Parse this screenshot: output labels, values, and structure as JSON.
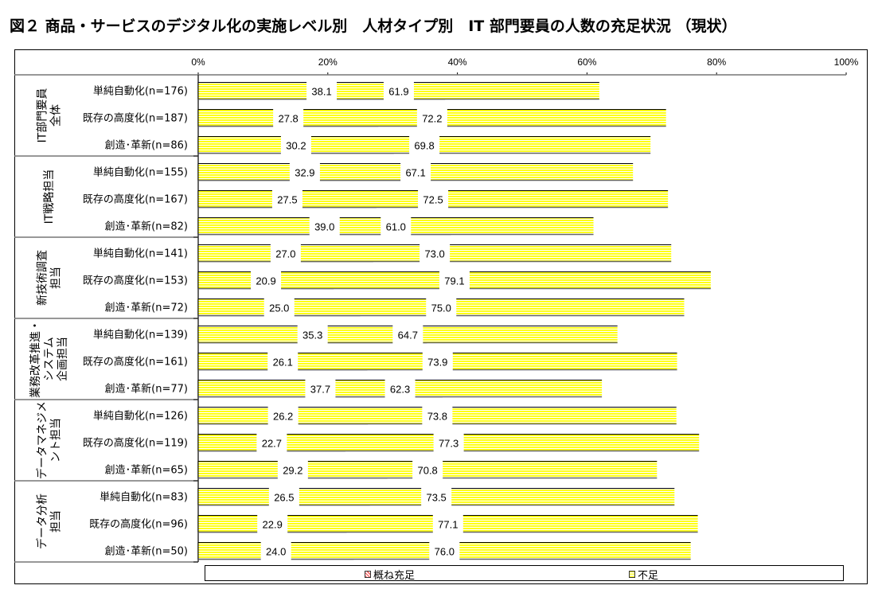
{
  "title": "図２ 商品・サービスのデジタル化の実施レベル別　人材タイプ別　IT 部門要員の人数の充足状況 （現状）",
  "colors": {
    "sufficient": "#ff4d4d",
    "insufficient": "#ffff00",
    "hatch_bg": "#ffffff"
  },
  "chart_data": {
    "type": "bar",
    "orientation": "horizontal",
    "stacked": true,
    "percent_stacked": true,
    "title": "図２ 商品・サービスのデジタル化の実施レベル別　人材タイプ別　IT 部門要員の人数の充足状況 （現状）",
    "xlabel": "",
    "ylabel": "",
    "xlim": [
      0,
      100
    ],
    "x_ticks": [
      "0%",
      "20%",
      "40%",
      "60%",
      "80%",
      "100%"
    ],
    "legend_position": "bottom",
    "legend": [
      "概ね充足",
      "不足"
    ],
    "groups": [
      {
        "label_lines": [
          "IT部門要員",
          "全体"
        ],
        "rows": [
          {
            "category": "単純自動化(n=176)",
            "values": [
              38.1,
              61.9
            ]
          },
          {
            "category": "既存の高度化(n=187)",
            "values": [
              27.8,
              72.2
            ]
          },
          {
            "category": "創造･革新(n=86)",
            "values": [
              30.2,
              69.8
            ]
          }
        ]
      },
      {
        "label_lines": [
          "IT戦略担当"
        ],
        "rows": [
          {
            "category": "単純自動化(n=155)",
            "values": [
              32.9,
              67.1
            ]
          },
          {
            "category": "既存の高度化(n=167)",
            "values": [
              27.5,
              72.5
            ]
          },
          {
            "category": "創造･革新(n=82)",
            "values": [
              39.0,
              61.0
            ]
          }
        ]
      },
      {
        "label_lines": [
          "新技術調査",
          "担当"
        ],
        "rows": [
          {
            "category": "単純自動化(n=141)",
            "values": [
              27.0,
              73.0
            ]
          },
          {
            "category": "既存の高度化(n=153)",
            "values": [
              20.9,
              79.1
            ]
          },
          {
            "category": "創造･革新(n=72)",
            "values": [
              25.0,
              75.0
            ]
          }
        ]
      },
      {
        "label_lines": [
          "業務改革推進・",
          "システム",
          "企画担当"
        ],
        "rows": [
          {
            "category": "単純自動化(n=139)",
            "values": [
              35.3,
              64.7
            ]
          },
          {
            "category": "既存の高度化(n=161)",
            "values": [
              26.1,
              73.9
            ]
          },
          {
            "category": "創造･革新(n=77)",
            "values": [
              37.7,
              62.3
            ]
          }
        ]
      },
      {
        "label_lines": [
          "データマネジメ",
          "ント担当"
        ],
        "rows": [
          {
            "category": "単純自動化(n=126)",
            "values": [
              26.2,
              73.8
            ]
          },
          {
            "category": "既存の高度化(n=119)",
            "values": [
              22.7,
              77.3
            ]
          },
          {
            "category": "創造･革新(n=65)",
            "values": [
              29.2,
              70.8
            ]
          }
        ]
      },
      {
        "label_lines": [
          "データ分析",
          "担当"
        ],
        "rows": [
          {
            "category": "単純自動化(n=83)",
            "values": [
              26.5,
              73.5
            ]
          },
          {
            "category": "既存の高度化(n=96)",
            "values": [
              22.9,
              77.1
            ]
          },
          {
            "category": "創造･革新(n=50)",
            "values": [
              24.0,
              76.0
            ]
          }
        ]
      }
    ]
  }
}
